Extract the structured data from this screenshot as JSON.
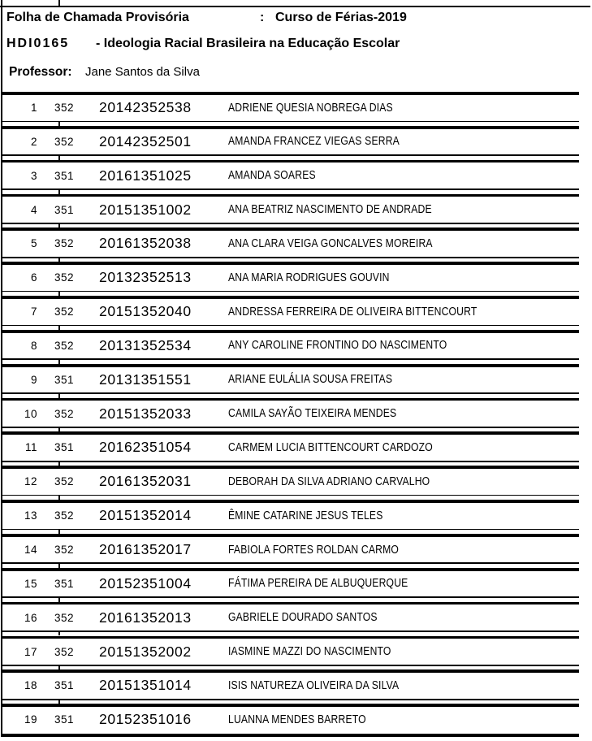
{
  "colors": {
    "ink": "#000000",
    "paper": "#ffffff"
  },
  "header": {
    "title_label": "Folha de Chamada Provisória",
    "title_colon": ":",
    "title_term": "Curso de Férias-2019",
    "course_code": "HDI0165",
    "course_title": "- Ideologia Racial Brasileira na Educação Escolar",
    "professor_label": "Professor:",
    "professor_name": "Jane Santos da Silva"
  },
  "table": {
    "columns": [
      "numero",
      "turma",
      "matricula",
      "nome"
    ],
    "students": [
      {
        "num": "1",
        "turma": "352",
        "matricula": "20142352538",
        "nome": "ADRIENE QUESIA NOBREGA DIAS"
      },
      {
        "num": "2",
        "turma": "352",
        "matricula": "20142352501",
        "nome": "AMANDA FRANCEZ VIEGAS SERRA"
      },
      {
        "num": "3",
        "turma": "351",
        "matricula": "20161351025",
        "nome": "AMANDA SOARES"
      },
      {
        "num": "4",
        "turma": "351",
        "matricula": "20151351002",
        "nome": "ANA BEATRIZ NASCIMENTO DE ANDRADE"
      },
      {
        "num": "5",
        "turma": "352",
        "matricula": "20161352038",
        "nome": "ANA CLARA VEIGA GONCALVES MOREIRA"
      },
      {
        "num": "6",
        "turma": "352",
        "matricula": "20132352513",
        "nome": "ANA MARIA RODRIGUES GOUVIN"
      },
      {
        "num": "7",
        "turma": "352",
        "matricula": "20151352040",
        "nome": "ANDRESSA FERREIRA DE OLIVEIRA BITTENCOURT"
      },
      {
        "num": "8",
        "turma": "352",
        "matricula": "20131352534",
        "nome": "ANY CAROLINE FRONTINO DO NASCIMENTO"
      },
      {
        "num": "9",
        "turma": "351",
        "matricula": "20131351551",
        "nome": "ARIANE EULÁLIA SOUSA FREITAS"
      },
      {
        "num": "10",
        "turma": "352",
        "matricula": "20151352033",
        "nome": "CAMILA SAYÃO TEIXEIRA MENDES"
      },
      {
        "num": "11",
        "turma": "351",
        "matricula": "20162351054",
        "nome": "CARMEM LUCIA BITTENCOURT CARDOZO"
      },
      {
        "num": "12",
        "turma": "352",
        "matricula": "20161352031",
        "nome": "DEBORAH DA SILVA ADRIANO CARVALHO"
      },
      {
        "num": "13",
        "turma": "352",
        "matricula": "20151352014",
        "nome": "ÊMINE CATARINE JESUS TELES"
      },
      {
        "num": "14",
        "turma": "352",
        "matricula": "20161352017",
        "nome": "FABIOLA FORTES ROLDAN CARMO"
      },
      {
        "num": "15",
        "turma": "351",
        "matricula": "20152351004",
        "nome": "FÁTIMA PEREIRA DE ALBUQUERQUE"
      },
      {
        "num": "16",
        "turma": "352",
        "matricula": "20161352013",
        "nome": "GABRIELE DOURADO SANTOS"
      },
      {
        "num": "17",
        "turma": "352",
        "matricula": "20151352002",
        "nome": "IASMINE MAZZI DO NASCIMENTO"
      },
      {
        "num": "18",
        "turma": "351",
        "matricula": "20151351014",
        "nome": "ISIS NATUREZA OLIVEIRA DA SILVA"
      },
      {
        "num": "19",
        "turma": "351",
        "matricula": "20152351016",
        "nome": "LUANNA MENDES BARRETO"
      }
    ]
  }
}
